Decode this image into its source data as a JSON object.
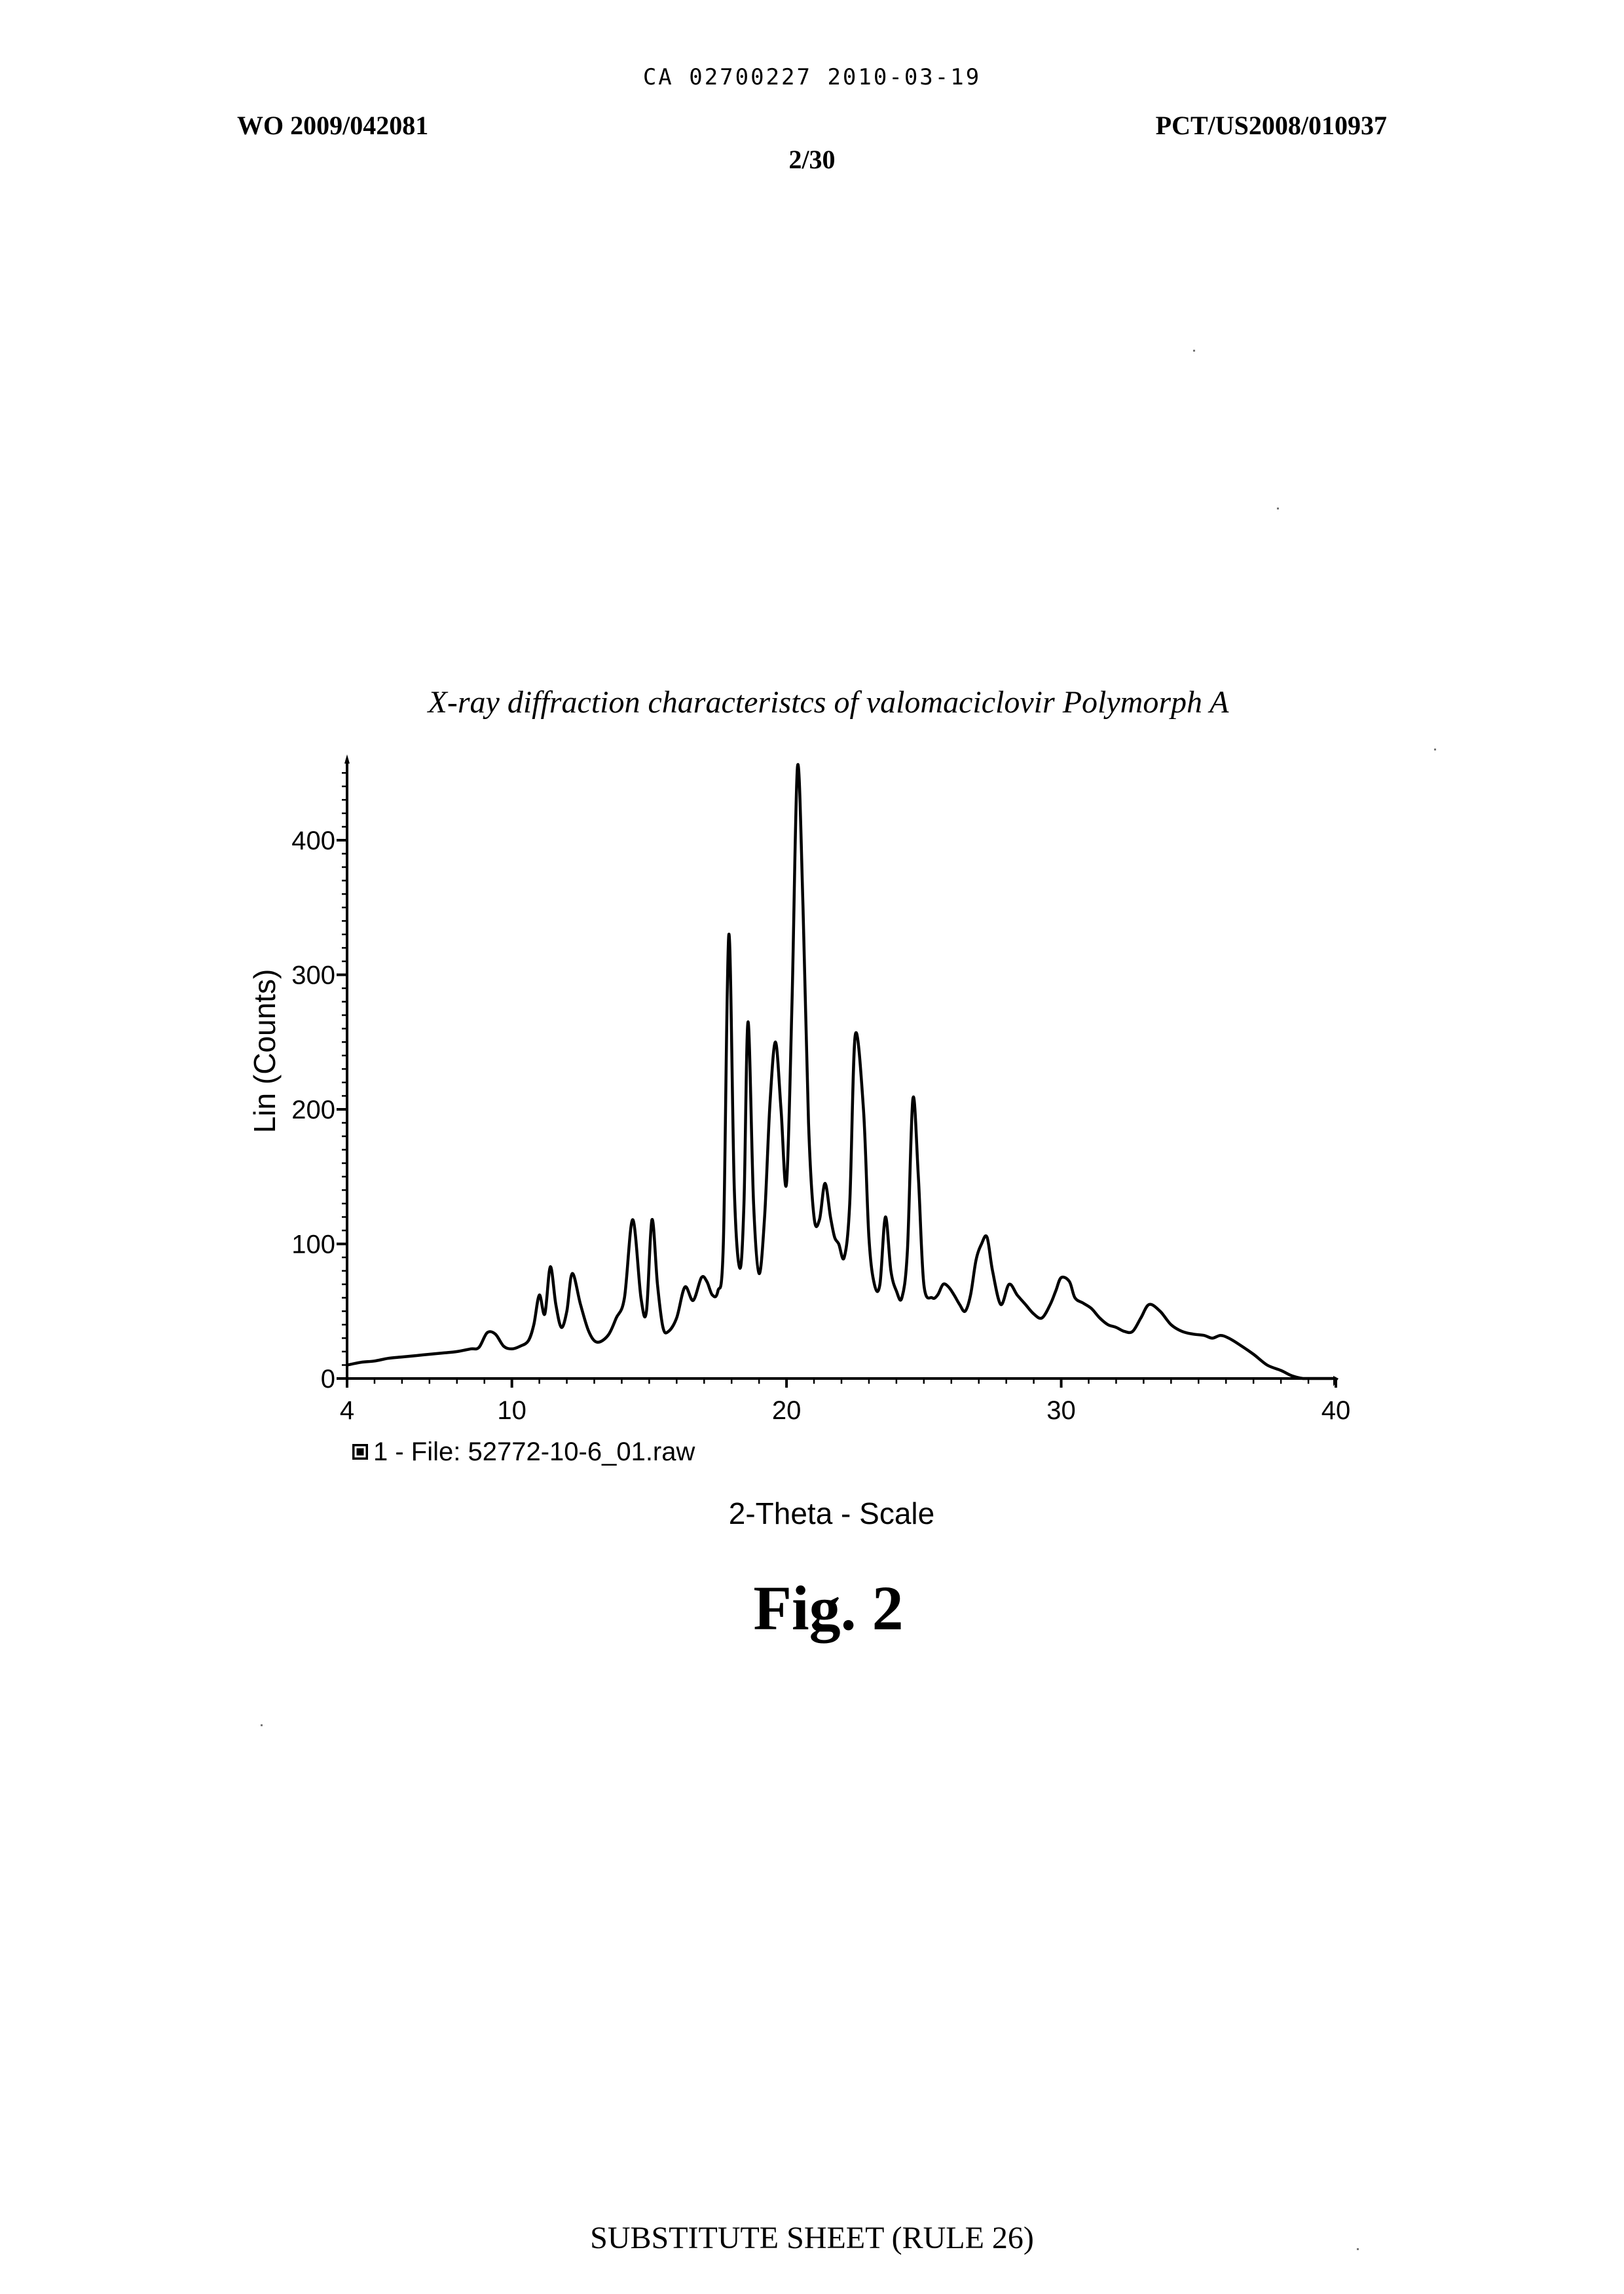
{
  "header": {
    "ca_line": "CA 02700227 2010-03-19",
    "wo_number": "WO 2009/042081",
    "pct_number": "PCT/US2008/010937",
    "page": "2/30"
  },
  "figure": {
    "title": "X-ray diffraction characteristcs of valomaciclovir Polymorph A",
    "label": "Fig. 2"
  },
  "footer": "SUBSTITUTE SHEET (RULE 26)",
  "chart_data": {
    "type": "line",
    "title": "X-ray diffraction characteristcs of valomaciclovir Polymorph A",
    "xlabel": "2-Theta - Scale",
    "ylabel": "Lin (Counts)",
    "xlim": [
      4,
      40
    ],
    "ylim": [
      0,
      455
    ],
    "x_ticks": [
      4,
      10,
      20,
      30,
      40
    ],
    "y_ticks": [
      0,
      100,
      200,
      300,
      400
    ],
    "grid": false,
    "legend": {
      "position": "bottom-left",
      "label": "1 - File: 52772-10-6_01.raw"
    },
    "series": [
      {
        "name": "1 - File: 52772-10-6_01.raw",
        "color": "#000000",
        "x": [
          4.0,
          4.5,
          5.0,
          5.5,
          6.0,
          6.5,
          7.0,
          7.5,
          8.0,
          8.5,
          8.8,
          9.1,
          9.4,
          9.7,
          10.0,
          10.3,
          10.6,
          10.8,
          11.0,
          11.2,
          11.4,
          11.6,
          11.8,
          12.0,
          12.2,
          12.5,
          12.8,
          13.1,
          13.5,
          13.8,
          14.1,
          14.4,
          14.7,
          14.9,
          15.1,
          15.3,
          15.5,
          15.7,
          16.0,
          16.3,
          16.6,
          16.9,
          17.1,
          17.3,
          17.5,
          17.7,
          17.9,
          18.1,
          18.3,
          18.45,
          18.6,
          18.8,
          19.0,
          19.2,
          19.4,
          19.6,
          19.8,
          20.0,
          20.2,
          20.4,
          20.6,
          20.8,
          21.0,
          21.2,
          21.4,
          21.6,
          21.75,
          21.9,
          22.1,
          22.3,
          22.5,
          22.8,
          23.0,
          23.2,
          23.4,
          23.6,
          23.8,
          24.0,
          24.2,
          24.4,
          24.6,
          24.8,
          25.0,
          25.3,
          25.5,
          25.7,
          25.9,
          26.1,
          26.3,
          26.5,
          26.7,
          26.9,
          27.1,
          27.3,
          27.5,
          27.8,
          28.1,
          28.4,
          28.7,
          29.0,
          29.3,
          29.6,
          29.8,
          30.0,
          30.3,
          30.5,
          30.8,
          31.1,
          31.4,
          31.7,
          32.0,
          32.3,
          32.6,
          32.9,
          33.2,
          33.6,
          34.0,
          34.4,
          34.8,
          35.2,
          35.5,
          35.8,
          36.1,
          36.5,
          37.0,
          37.5,
          38.0,
          38.4,
          38.8,
          39.2,
          39.6,
          39.8,
          40.0
        ],
        "y": [
          10,
          12,
          13,
          15,
          16,
          17,
          18,
          19,
          20,
          22,
          23,
          34,
          33,
          24,
          22,
          24,
          28,
          40,
          62,
          48,
          83,
          55,
          38,
          50,
          78,
          55,
          35,
          27,
          32,
          45,
          60,
          118,
          60,
          50,
          118,
          70,
          38,
          35,
          45,
          68,
          58,
          75,
          72,
          62,
          65,
          100,
          330,
          140,
          82,
          130,
          265,
          130,
          78,
          120,
          205,
          250,
          200,
          145,
          280,
          455,
          350,
          190,
          120,
          118,
          145,
          120,
          105,
          100,
          90,
          130,
          255,
          200,
          105,
          70,
          70,
          120,
          80,
          65,
          60,
          95,
          208,
          150,
          70,
          60,
          62,
          70,
          68,
          62,
          55,
          50,
          62,
          88,
          100,
          105,
          80,
          55,
          70,
          62,
          55,
          48,
          45,
          55,
          65,
          75,
          72,
          60,
          56,
          52,
          45,
          40,
          38,
          35,
          35,
          45,
          55,
          50,
          40,
          35,
          33,
          32,
          30,
          32,
          30,
          25,
          18,
          10,
          6,
          2,
          0,
          0,
          0,
          0,
          0
        ],
        "peaks_note": ""
      }
    ]
  }
}
